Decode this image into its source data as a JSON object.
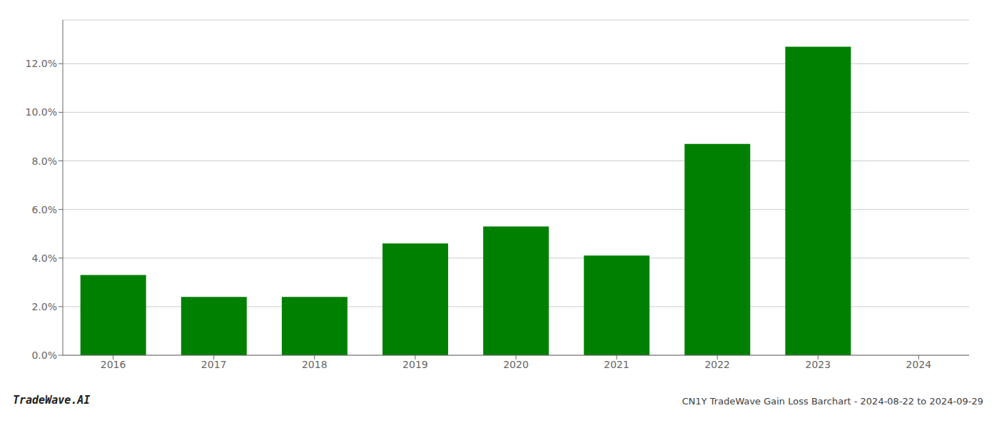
{
  "chart_data": {
    "type": "bar",
    "title": "CN1Y TradeWave Gain Loss Barchart - 2024-08-22 to 2024-09-29",
    "annotations": [
      "TradeWave.AI"
    ],
    "categories": [
      "2016",
      "2017",
      "2018",
      "2019",
      "2020",
      "2021",
      "2022",
      "2023",
      "2024"
    ],
    "values": [
      0.033,
      0.024,
      0.024,
      0.046,
      0.053,
      0.041,
      0.087,
      0.127,
      null
    ],
    "color": "#008000",
    "ylim": [
      0.0,
      0.138
    ],
    "yticks": [
      {
        "value": 0.0,
        "label": "0.0%"
      },
      {
        "value": 0.02,
        "label": "2.0%"
      },
      {
        "value": 0.04,
        "label": "4.0%"
      },
      {
        "value": 0.06,
        "label": "6.0%"
      },
      {
        "value": 0.08,
        "label": "8.0%"
      },
      {
        "value": 0.1,
        "label": "10.0%"
      },
      {
        "value": 0.12,
        "label": "12.0%"
      }
    ],
    "grid": true
  }
}
